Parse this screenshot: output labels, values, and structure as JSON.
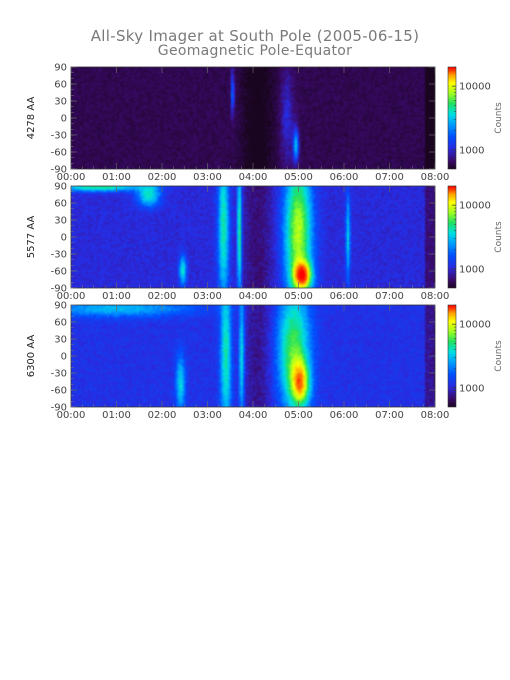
{
  "chart_data": {
    "type": "heatmap",
    "title": "All-Sky Imager at South Pole (2005-06-15)",
    "subtitle": "Geomagnetic Pole-Equator",
    "x_ticks": [
      "00:00",
      "01:00",
      "02:00",
      "03:00",
      "04:00",
      "05:00",
      "06:00",
      "07:00",
      "08:00"
    ],
    "y_ticks": [
      90,
      60,
      30,
      0,
      -30,
      -60,
      -90
    ],
    "ylim": [
      -90,
      90
    ],
    "colorbar": {
      "label": "Counts",
      "ticks": [
        10000,
        1000
      ],
      "scale": "log",
      "colors": [
        "#1a0520",
        "#3a0a6a",
        "#2a2ae0",
        "#0050ff",
        "#00a0ff",
        "#00e0e0",
        "#20e060",
        "#a0ff20",
        "#ffff00",
        "#ffa000",
        "#ff3000",
        "#ff0000"
      ]
    },
    "panels": [
      {
        "name": "4278 AA",
        "base_level": 0.06,
        "features": [
          {
            "t": 3.55,
            "lat": 45,
            "width": 0.04,
            "lat_width": 40,
            "intensity": 0.25
          },
          {
            "t": 4.95,
            "lat": -50,
            "width": 0.06,
            "lat_width": 30,
            "intensity": 0.35
          },
          {
            "t": 4.75,
            "lat": 0,
            "width": 0.15,
            "lat_width": 90,
            "intensity": 0.12
          }
        ]
      },
      {
        "name": "5577 AA",
        "base_level": 0.18,
        "features": [
          {
            "t": 0.6,
            "lat": 90,
            "width": 0.9,
            "lat_width": 8,
            "intensity": 0.35
          },
          {
            "t": 1.7,
            "lat": 75,
            "width": 0.25,
            "lat_width": 20,
            "intensity": 0.3
          },
          {
            "t": 2.45,
            "lat": -60,
            "width": 0.08,
            "lat_width": 25,
            "intensity": 0.3
          },
          {
            "t": 3.35,
            "lat": 20,
            "width": 0.12,
            "lat_width": 140,
            "intensity": 0.32
          },
          {
            "t": 3.7,
            "lat": 10,
            "width": 0.05,
            "lat_width": 120,
            "intensity": 0.38
          },
          {
            "t": 5.0,
            "lat": 10,
            "width": 0.3,
            "lat_width": 130,
            "intensity": 0.48
          },
          {
            "t": 5.1,
            "lat": -70,
            "width": 0.2,
            "lat_width": 25,
            "intensity": 0.55
          },
          {
            "t": 6.1,
            "lat": 0,
            "width": 0.05,
            "lat_width": 80,
            "intensity": 0.25
          }
        ]
      },
      {
        "name": "6300 AA",
        "base_level": 0.2,
        "features": [
          {
            "t": 1.0,
            "lat": 85,
            "width": 1.6,
            "lat_width": 15,
            "intensity": 0.2
          },
          {
            "t": 2.4,
            "lat": -50,
            "width": 0.1,
            "lat_width": 50,
            "intensity": 0.25
          },
          {
            "t": 3.4,
            "lat": 0,
            "width": 0.12,
            "lat_width": 140,
            "intensity": 0.3
          },
          {
            "t": 3.75,
            "lat": 0,
            "width": 0.06,
            "lat_width": 120,
            "intensity": 0.28
          },
          {
            "t": 4.9,
            "lat": 10,
            "width": 0.35,
            "lat_width": 110,
            "intensity": 0.38
          },
          {
            "t": 5.05,
            "lat": -50,
            "width": 0.2,
            "lat_width": 40,
            "intensity": 0.45
          }
        ]
      }
    ]
  }
}
